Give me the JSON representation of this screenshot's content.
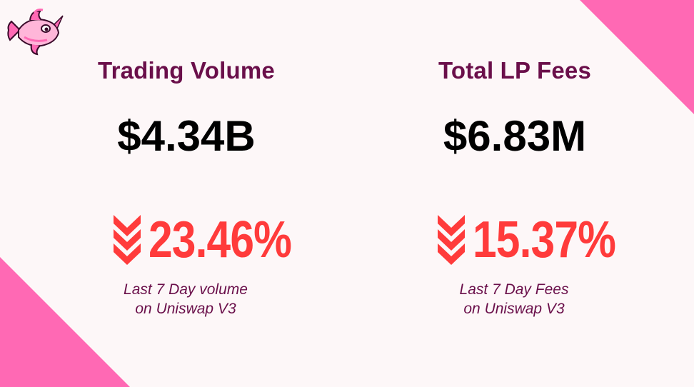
{
  "colors": {
    "background": "#fdf7f8",
    "corner": "#ff69b4",
    "title": "#6a0f4a",
    "value": "#000000",
    "change": "#ff3b3b",
    "caption": "#6a0f4a"
  },
  "logo": {
    "icon": "unicorn-fish-icon"
  },
  "stats": [
    {
      "title": "Trading Volume",
      "value": "$4.34B",
      "change": "23.46%",
      "direction": "down",
      "icon": "double-chevron-down-icon",
      "caption_line1": "Last 7 Day volume",
      "caption_line2": "on Uniswap V3"
    },
    {
      "title": "Total LP Fees",
      "value": "$6.83M",
      "change": "15.37%",
      "direction": "down",
      "icon": "double-chevron-down-icon",
      "caption_line1": "Last 7 Day Fees",
      "caption_line2": "on Uniswap V3"
    }
  ]
}
